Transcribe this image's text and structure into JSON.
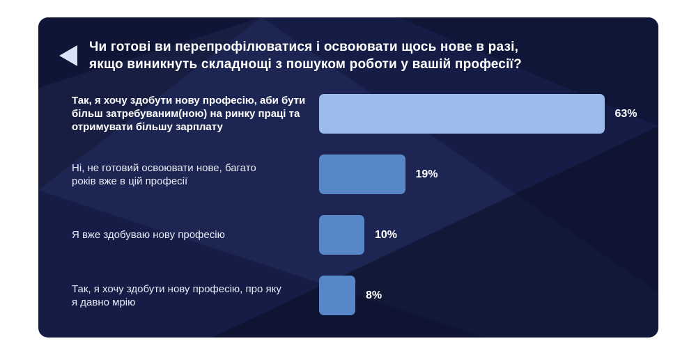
{
  "header": {
    "title": "Чи готові ви перепрофілюватися і освоювати щось нове в разі,\nякщо виникнуть складнощі з пошуком роботи у вашій професії?",
    "marker_icon": "left-triangle-icon",
    "marker_color": "#d9e3f8"
  },
  "colors": {
    "card_background": "#151d47",
    "highlight_bar": "#9cbbea",
    "regular_bar": "#5887c9",
    "text": "#ffffff"
  },
  "chart_data": {
    "type": "bar",
    "orientation": "horizontal",
    "title": "Чи готові ви перепрофілюватися і освоювати щось нове в разі, якщо виникнуть складнощі з пошуком роботи у вашій професії?",
    "categories": [
      "Так, я хочу здобути нову професію, аби бути\nбільш затребуваним(ною) на ринку праці та\nотримувати більшу зарплату",
      "Ні, не готовий освоювати нове, багато\nроків вже в цій професії",
      "Я вже здобуваю нову професію",
      "Так, я хочу здобути нову професію, про яку\nя давно мрію"
    ],
    "values": [
      63,
      19,
      10,
      8
    ],
    "value_labels": [
      "63%",
      "19%",
      "10%",
      "8%"
    ],
    "bar_colors": [
      "#9cbbea",
      "#5887c9",
      "#5887c9",
      "#5887c9"
    ],
    "xlim": [
      0,
      100
    ],
    "grid": false,
    "legend": false,
    "value_label_position": "right-of-bar"
  }
}
